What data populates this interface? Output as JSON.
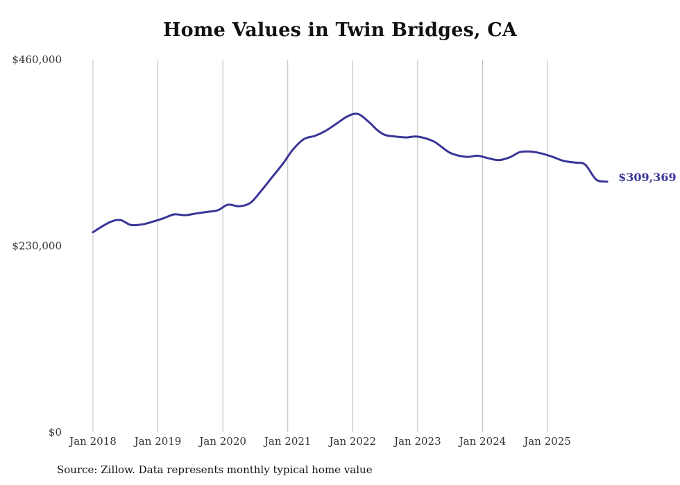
{
  "chart_data": {
    "type": "line",
    "title": "Home Values in Twin Bridges, CA",
    "xlabel": "",
    "ylabel": "",
    "source": "Source: Zillow. Data represents monthly typical home value",
    "ylim": [
      0,
      460000
    ],
    "yticks": [
      0,
      230000,
      460000
    ],
    "ytick_labels": [
      "$0",
      "$230,000",
      "$460,000"
    ],
    "xticks": [
      "Jan 2018",
      "Jan 2019",
      "Jan 2020",
      "Jan 2021",
      "Jan 2022",
      "Jan 2023",
      "Jan 2024",
      "Jan 2025"
    ],
    "xgrid": true,
    "line_color": "#3a3596",
    "end_label": "$309,369",
    "series": [
      {
        "name": "Typical home value",
        "x": [
          2018.0,
          2018.25,
          2018.42,
          2018.58,
          2018.75,
          2018.92,
          2019.08,
          2019.25,
          2019.42,
          2019.58,
          2019.75,
          2019.92,
          2020.08,
          2020.25,
          2020.42,
          2020.58,
          2020.75,
          2020.92,
          2021.08,
          2021.25,
          2021.42,
          2021.58,
          2021.75,
          2021.92,
          2022.08,
          2022.25,
          2022.38,
          2022.5,
          2022.67,
          2022.83,
          2023.0,
          2023.25,
          2023.5,
          2023.75,
          2023.92,
          2024.08,
          2024.25,
          2024.42,
          2024.58,
          2024.75,
          2024.92,
          2025.08,
          2025.25,
          2025.42,
          2025.58,
          2025.75,
          2025.92
        ],
        "values": [
          247000,
          259000,
          262000,
          256000,
          256500,
          260000,
          264000,
          269000,
          268000,
          270000,
          272000,
          274000,
          281000,
          279000,
          283000,
          297000,
          314000,
          331000,
          349000,
          362000,
          366000,
          372000,
          381000,
          390000,
          393000,
          383000,
          373000,
          367000,
          365000,
          364000,
          365000,
          359000,
          345000,
          340000,
          341500,
          338500,
          336000,
          339500,
          346000,
          346500,
          344000,
          340000,
          335000,
          333000,
          330500,
          312000,
          309369
        ]
      }
    ]
  }
}
